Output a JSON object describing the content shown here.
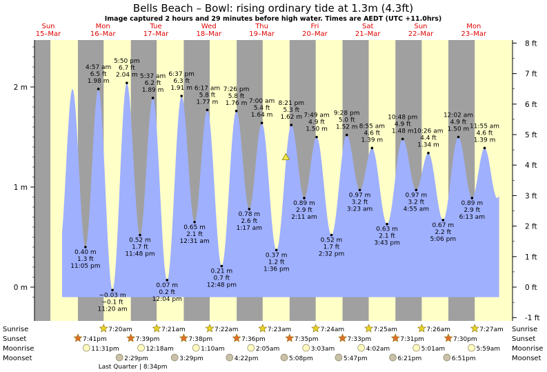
{
  "header": {
    "title": "Bells Beach – Bowl: rising  ordinary tide at 1.3m (4.3ft)",
    "subtitle": "Image captured 2 hours and 29 minutes before high water. Times are AEDT (UTC +11.0hrs)"
  },
  "days": [
    {
      "name": "Sun",
      "date": "15–Mar"
    },
    {
      "name": "Mon",
      "date": "16–Mar"
    },
    {
      "name": "Tue",
      "date": "17–Mar"
    },
    {
      "name": "Wed",
      "date": "18–Mar"
    },
    {
      "name": "Thu",
      "date": "19–Mar"
    },
    {
      "name": "Fri",
      "date": "20–Mar"
    },
    {
      "name": "Sat",
      "date": "21–Mar"
    },
    {
      "name": "Sun",
      "date": "22–Mar"
    },
    {
      "name": "Mon",
      "date": "23–Mar"
    }
  ],
  "row_labels": {
    "sunrise": "Sunrise",
    "sunset": "Sunset",
    "moonrise": "Moonrise",
    "moonset": "Moonset"
  },
  "colors": {
    "day": "#ffffc8",
    "night": "#a0a0a0",
    "water": "#9fb0ff",
    "day_label": "#e00000",
    "marker": "#f2e84a"
  },
  "chart_data": {
    "type": "area",
    "x_unit": "hours after Sun 15-Mar 00:00 (AEDT)",
    "y_unit": "m",
    "ylim": [
      -0.12,
      2.55
    ],
    "y_ticks_m": [
      0,
      1,
      2
    ],
    "y_ticks_ft": [
      -1,
      0,
      1,
      2,
      3,
      4,
      5,
      6,
      7,
      8
    ],
    "grid": false,
    "current": {
      "height_m": 1.3,
      "height_ft": 4.3,
      "label": "rising ordinary tide at 1.3m (4.3ft)"
    },
    "tides": [
      {
        "kind": "low",
        "x": 23.08,
        "m": "0.40 m",
        "ft": "1.3 ft",
        "time": "11:05 pm",
        "y": 0.4
      },
      {
        "kind": "high",
        "x": 28.95,
        "m": "1.98 m",
        "ft": "6.5 ft",
        "time": "4:57 am",
        "y": 1.98
      },
      {
        "kind": "low",
        "x": 35.33,
        "m": "−0.03 m",
        "ft": "−0.1 ft",
        "time": "11:20 am",
        "y": -0.03
      },
      {
        "kind": "high",
        "x": 41.83,
        "m": "2.04 m",
        "ft": "6.7 ft",
        "time": "5:50 pm",
        "y": 2.04
      },
      {
        "kind": "low",
        "x": 47.8,
        "m": "0.52 m",
        "ft": "1.7 ft",
        "time": "11:48 pm",
        "y": 0.52
      },
      {
        "kind": "high",
        "x": 53.62,
        "m": "1.89 m",
        "ft": "6.2 ft",
        "time": "5:37 am",
        "y": 1.89
      },
      {
        "kind": "low",
        "x": 60.07,
        "m": "0.07 m",
        "ft": "0.2 ft",
        "time": "12:04 pm",
        "y": 0.07
      },
      {
        "kind": "high",
        "x": 66.62,
        "m": "1.91 m",
        "ft": "6.3 ft",
        "time": "6:37 pm",
        "y": 1.91
      },
      {
        "kind": "low",
        "x": 72.52,
        "m": "0.65 m",
        "ft": "2.1 ft",
        "time": "12:31 am",
        "y": 0.65
      },
      {
        "kind": "high",
        "x": 78.28,
        "m": "1.77 m",
        "ft": "5.8 ft",
        "time": "6:17 am",
        "y": 1.77
      },
      {
        "kind": "low",
        "x": 84.8,
        "m": "0.21 m",
        "ft": "0.7 ft",
        "time": "12:48 pm",
        "y": 0.21
      },
      {
        "kind": "high",
        "x": 91.43,
        "m": "1.76 m",
        "ft": "5.8 ft",
        "time": "7:26 pm",
        "y": 1.76
      },
      {
        "kind": "low",
        "x": 97.28,
        "m": "0.78 m",
        "ft": "2.6 ft",
        "time": "1:17 am",
        "y": 0.78
      },
      {
        "kind": "high",
        "x": 103.0,
        "m": "1.64 m",
        "ft": "5.4 ft",
        "time": "7:00 am",
        "y": 1.64
      },
      {
        "kind": "low",
        "x": 109.6,
        "m": "0.37 m",
        "ft": "1.2 ft",
        "time": "1:36 pm",
        "y": 0.37
      },
      {
        "kind": "high",
        "x": 116.35,
        "m": "1.62 m",
        "ft": "5.3 ft",
        "time": "8:21 pm",
        "y": 1.62
      },
      {
        "kind": "low",
        "x": 122.18,
        "m": "0.89 m",
        "ft": "2.9 ft",
        "time": "2:11 am",
        "y": 0.89
      },
      {
        "kind": "high",
        "x": 127.82,
        "m": "1.50 m",
        "ft": "4.9 ft",
        "time": "7:49 am",
        "y": 1.5
      },
      {
        "kind": "low",
        "x": 134.53,
        "m": "0.52 m",
        "ft": "1.7 ft",
        "time": "2:32 pm",
        "y": 0.52
      },
      {
        "kind": "high",
        "x": 141.47,
        "m": "1.52 m",
        "ft": "5.0 ft",
        "time": "9:28 pm",
        "y": 1.52
      },
      {
        "kind": "low",
        "x": 147.38,
        "m": "0.97 m",
        "ft": "3.2 ft",
        "time": "3:23 am",
        "y": 0.97
      },
      {
        "kind": "high",
        "x": 152.92,
        "m": "1.39 m",
        "ft": "4.6 ft",
        "time": "8:55 am",
        "y": 1.39
      },
      {
        "kind": "low",
        "x": 159.72,
        "m": "0.63 m",
        "ft": "2.1 ft",
        "time": "3:43 pm",
        "y": 0.63
      },
      {
        "kind": "high",
        "x": 166.8,
        "m": "1.48 m",
        "ft": "4.9 ft",
        "time": "10:48 pm",
        "y": 1.48
      },
      {
        "kind": "low",
        "x": 172.92,
        "m": "0.97 m",
        "ft": "3.2 ft",
        "time": "4:55 am",
        "y": 0.97
      },
      {
        "kind": "high",
        "x": 178.43,
        "m": "1.34 m",
        "ft": "4.4 ft",
        "time": "10:26 am",
        "y": 1.34
      },
      {
        "kind": "low",
        "x": 185.1,
        "m": "0.67 m",
        "ft": "2.2 ft",
        "time": "5:06 pm",
        "y": 0.67
      },
      {
        "kind": "high",
        "x": 192.03,
        "m": "1.50 m",
        "ft": "4.9 ft",
        "time": "12:02 am",
        "y": 1.5
      },
      {
        "kind": "low",
        "x": 198.22,
        "m": "0.89 m",
        "ft": "2.9 ft",
        "time": "6:13 am",
        "y": 0.89
      },
      {
        "kind": "high",
        "x": 203.92,
        "m": "1.39 m",
        "ft": "4.6 ft",
        "time": "11:55 am",
        "y": 1.39
      }
    ],
    "nights": [
      [
        0,
        7.2
      ],
      [
        19.68,
        31.33
      ],
      [
        43.65,
        55.35
      ],
      [
        67.63,
        79.37
      ],
      [
        91.6,
        103.38
      ],
      [
        115.58,
        127.4
      ],
      [
        139.55,
        151.42
      ],
      [
        163.52,
        175.43
      ],
      [
        187.5,
        199.45
      ]
    ],
    "sun_moon": {
      "sunrise": [
        {
          "time": "7:20am",
          "x": 31.33
        },
        {
          "time": "7:21am",
          "x": 55.35
        },
        {
          "time": "7:22am",
          "x": 79.37
        },
        {
          "time": "7:23am",
          "x": 103.38
        },
        {
          "time": "7:24am",
          "x": 127.4
        },
        {
          "time": "7:25am",
          "x": 151.42
        },
        {
          "time": "7:26am",
          "x": 175.43
        },
        {
          "time": "7:27am",
          "x": 199.45
        }
      ],
      "sunset": [
        {
          "time": "7:41pm",
          "x": 19.68
        },
        {
          "time": "7:39pm",
          "x": 43.65
        },
        {
          "time": "7:38pm",
          "x": 67.63
        },
        {
          "time": "7:36pm",
          "x": 91.6
        },
        {
          "time": "7:35pm",
          "x": 115.58
        },
        {
          "time": "7:33pm",
          "x": 139.55
        },
        {
          "time": "7:31pm",
          "x": 163.52
        },
        {
          "time": "7:30pm",
          "x": 187.5
        }
      ],
      "moonrise": [
        {
          "time": "11:31pm",
          "x": 23.52
        },
        {
          "time": "12:18am",
          "x": 48.3
        },
        {
          "time": "1:10am",
          "x": 73.17
        },
        {
          "time": "2:05am",
          "x": 98.08
        },
        {
          "time": "3:03am",
          "x": 123.05
        },
        {
          "time": "4:02am",
          "x": 148.03
        },
        {
          "time": "5:01am",
          "x": 173.02
        },
        {
          "time": "5:59am",
          "x": 197.98
        }
      ],
      "moonset": [
        {
          "time": "2:29pm",
          "x": 38.48
        },
        {
          "time": "3:29pm",
          "x": 63.48
        },
        {
          "time": "4:22pm",
          "x": 88.37
        },
        {
          "time": "5:08pm",
          "x": 113.13
        },
        {
          "time": "5:47pm",
          "x": 137.78
        },
        {
          "time": "6:21pm",
          "x": 162.35
        },
        {
          "time": "6:51pm",
          "x": 186.85
        }
      ]
    },
    "moon_phase": {
      "label": "Last Quarter | 8:34pm",
      "x": 44.57
    }
  }
}
